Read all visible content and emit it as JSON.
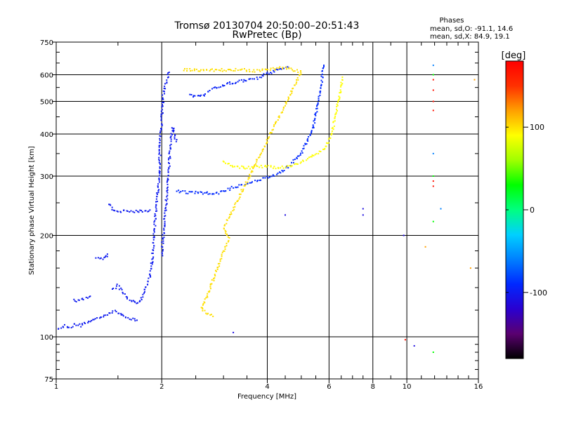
{
  "chart_data": {
    "type": "scatter",
    "title": "Tromsø 20130704 20:50:00–20:51:43",
    "subtitle": "RwPretec (Bp)",
    "xlabel": "Frequency [MHz]",
    "ylabel": "Stationary phase Virtual Height [km]",
    "x_scale": "log",
    "y_scale": "log",
    "xlim": [
      1,
      16
    ],
    "ylim": [
      75,
      750
    ],
    "x_ticks": [
      1,
      2,
      4,
      6,
      8,
      10,
      16
    ],
    "x_tick_labels": [
      "1",
      "2",
      "4",
      "6",
      "8",
      "10",
      "16"
    ],
    "y_ticks": [
      75,
      100,
      200,
      300,
      400,
      500,
      600,
      750
    ],
    "y_tick_labels": [
      "75",
      "100",
      "200",
      "300",
      "400",
      "500",
      "600",
      "750"
    ],
    "grid": true,
    "info": {
      "heading": "Phases",
      "line_o": "mean, sd,O: -91.1, 14.6",
      "line_x": "mean, sd,X: 84.9, 19.1"
    },
    "colorbar": {
      "label": "[deg]",
      "range": [
        -180,
        180
      ],
      "ticks": [
        100,
        0,
        -100
      ],
      "tick_labels": [
        "100",
        "0",
        "-100"
      ],
      "colormap": [
        "#000000",
        "#5a0070",
        "#2a00d0",
        "#0028ff",
        "#0080ff",
        "#00d0ff",
        "#00ff80",
        "#00ff00",
        "#a0ff00",
        "#ffff00",
        "#ffa000",
        "#ff3000",
        "#ff0000"
      ]
    },
    "series": [
      {
        "phase": -100,
        "points": [
          [
            1.0,
            107
          ],
          [
            1.03,
            106
          ],
          [
            1.06,
            108
          ],
          [
            1.1,
            107
          ],
          [
            1.13,
            109
          ],
          [
            1.17,
            108
          ],
          [
            1.2,
            110
          ],
          [
            1.25,
            111
          ],
          [
            1.3,
            113
          ],
          [
            1.35,
            115
          ],
          [
            1.4,
            117
          ],
          [
            1.45,
            119
          ],
          [
            1.5,
            118
          ],
          [
            1.55,
            116
          ],
          [
            1.6,
            114
          ],
          [
            1.65,
            113
          ],
          [
            1.7,
            112
          ]
        ]
      },
      {
        "phase": -100,
        "points": [
          [
            1.12,
            128
          ],
          [
            1.16,
            128
          ],
          [
            1.2,
            130
          ],
          [
            1.25,
            132
          ]
        ]
      },
      {
        "phase": -100,
        "points": [
          [
            1.3,
            172
          ],
          [
            1.34,
            170
          ],
          [
            1.38,
            172
          ],
          [
            1.4,
            176
          ]
        ]
      },
      {
        "phase": -100,
        "points": [
          [
            1.42,
            248
          ],
          [
            1.45,
            240
          ],
          [
            1.5,
            236
          ],
          [
            1.55,
            236
          ],
          [
            1.6,
            236
          ],
          [
            1.65,
            236
          ],
          [
            1.7,
            236
          ],
          [
            1.75,
            236
          ],
          [
            1.8,
            236
          ],
          [
            1.85,
            238
          ]
        ]
      },
      {
        "phase": -100,
        "points": [
          [
            1.45,
            138
          ],
          [
            1.5,
            142
          ],
          [
            1.55,
            136
          ],
          [
            1.6,
            130
          ],
          [
            1.65,
            128
          ],
          [
            1.7,
            125
          ],
          [
            1.75,
            130
          ],
          [
            1.8,
            140
          ],
          [
            1.85,
            150
          ],
          [
            1.88,
            170
          ],
          [
            1.9,
            200
          ],
          [
            1.92,
            230
          ],
          [
            1.95,
            270
          ],
          [
            1.97,
            320
          ],
          [
            1.98,
            380
          ],
          [
            2.0,
            450
          ],
          [
            2.02,
            520
          ],
          [
            2.05,
            560
          ],
          [
            2.08,
            590
          ],
          [
            2.1,
            610
          ]
        ]
      },
      {
        "phase": -100,
        "points": [
          [
            2.0,
            175
          ],
          [
            2.02,
            200
          ],
          [
            2.05,
            240
          ],
          [
            2.08,
            280
          ],
          [
            2.1,
            330
          ],
          [
            2.12,
            380
          ],
          [
            2.15,
            420
          ],
          [
            2.2,
            380
          ]
        ]
      },
      {
        "phase": -90,
        "points": [
          [
            2.2,
            270
          ],
          [
            2.3,
            270
          ],
          [
            2.4,
            268
          ],
          [
            2.5,
            268
          ],
          [
            2.6,
            268
          ],
          [
            2.7,
            267
          ],
          [
            2.8,
            265
          ],
          [
            2.9,
            268
          ],
          [
            3.0,
            270
          ],
          [
            3.2,
            278
          ],
          [
            3.4,
            283
          ],
          [
            3.6,
            288
          ],
          [
            3.8,
            292
          ],
          [
            4.0,
            297
          ],
          [
            4.2,
            302
          ],
          [
            4.4,
            310
          ],
          [
            4.6,
            320
          ],
          [
            4.8,
            335
          ],
          [
            5.0,
            350
          ],
          [
            5.2,
            380
          ],
          [
            5.4,
            420
          ],
          [
            5.5,
            460
          ],
          [
            5.6,
            510
          ],
          [
            5.7,
            560
          ],
          [
            5.75,
            610
          ],
          [
            5.8,
            640
          ]
        ]
      },
      {
        "phase": -95,
        "points": [
          [
            2.4,
            520
          ],
          [
            2.5,
            515
          ],
          [
            2.6,
            518
          ],
          [
            2.7,
            530
          ],
          [
            2.8,
            545
          ],
          [
            3.0,
            560
          ],
          [
            3.2,
            570
          ],
          [
            3.4,
            575
          ],
          [
            3.6,
            580
          ],
          [
            3.8,
            588
          ],
          [
            4.0,
            605
          ],
          [
            4.2,
            615
          ],
          [
            4.4,
            625
          ],
          [
            4.6,
            630
          ]
        ]
      },
      {
        "phase": 90,
        "points": [
          [
            3.0,
            330
          ],
          [
            3.1,
            325
          ],
          [
            3.2,
            322
          ],
          [
            3.4,
            318
          ],
          [
            3.6,
            318
          ],
          [
            3.8,
            320
          ],
          [
            4.0,
            320
          ],
          [
            4.2,
            318
          ],
          [
            4.5,
            320
          ],
          [
            4.8,
            325
          ],
          [
            5.0,
            330
          ],
          [
            5.2,
            338
          ],
          [
            5.4,
            345
          ],
          [
            5.6,
            350
          ],
          [
            5.8,
            360
          ],
          [
            6.0,
            380
          ],
          [
            6.1,
            400
          ],
          [
            6.2,
            430
          ],
          [
            6.3,
            470
          ],
          [
            6.4,
            510
          ],
          [
            6.5,
            550
          ],
          [
            6.55,
            590
          ]
        ]
      },
      {
        "phase": 100,
        "points": [
          [
            2.3,
            620
          ],
          [
            3.4,
            620
          ],
          [
            3.7,
            615
          ],
          [
            4.5,
            630
          ],
          [
            5.0,
            610
          ],
          [
            3.0,
            210
          ],
          [
            3.1,
            195
          ],
          [
            2.6,
            120
          ],
          [
            2.8,
            115
          ]
        ]
      },
      {
        "phase": -110,
        "points": [
          [
            7.5,
            230
          ],
          [
            7.5,
            240
          ],
          [
            9.8,
            200
          ],
          [
            10.5,
            94
          ],
          [
            3.2,
            103
          ],
          [
            4.5,
            230
          ]
        ]
      },
      {
        "phase": 170,
        "points": [
          [
            11.9,
            470
          ],
          [
            11.9,
            500
          ],
          [
            11.9,
            540
          ],
          [
            11.9,
            580
          ],
          [
            11.9,
            290
          ],
          [
            11.9,
            280
          ],
          [
            9.9,
            98
          ]
        ]
      },
      {
        "phase": 30,
        "points": [
          [
            11.9,
            600
          ],
          [
            11.9,
            300
          ],
          [
            11.9,
            220
          ],
          [
            11.9,
            90
          ]
        ]
      },
      {
        "phase": -60,
        "points": [
          [
            11.9,
            640
          ],
          [
            11.9,
            350
          ],
          [
            12.5,
            240
          ]
        ]
      },
      {
        "phase": 120,
        "points": [
          [
            15.2,
            160
          ],
          [
            15.6,
            580
          ],
          [
            11.3,
            185
          ]
        ]
      }
    ]
  }
}
